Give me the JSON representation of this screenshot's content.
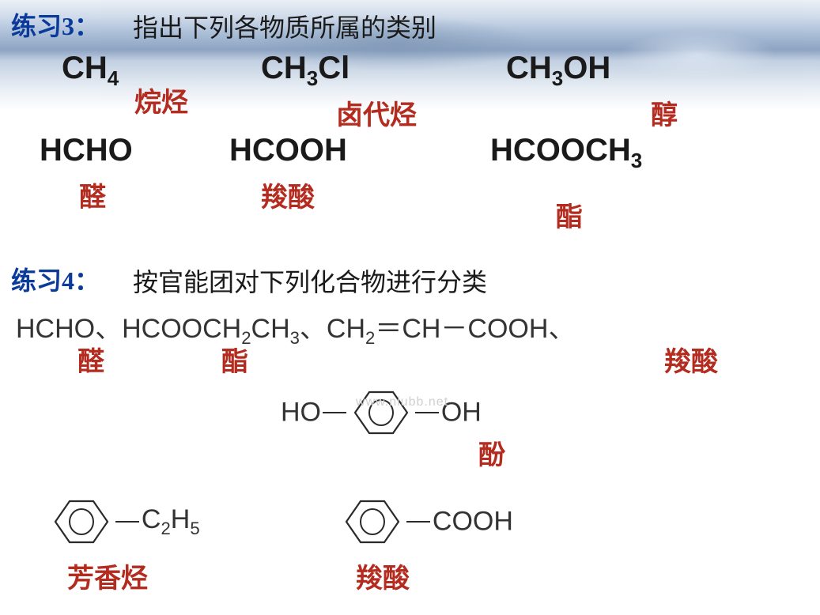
{
  "ex3": {
    "title": "练习3：",
    "prompt": "指出下列各物质所属的类别",
    "row1": [
      {
        "formula_html": "CH<sub>4</sub>",
        "label": "烷烃"
      },
      {
        "formula_html": "CH<sub>3</sub>Cl",
        "label": "卤代烃"
      },
      {
        "formula_html": "CH<sub>3</sub>OH",
        "label": "醇"
      }
    ],
    "row2": [
      {
        "formula_html": "HCHO",
        "label": "醛"
      },
      {
        "formula_html": "HCOOH",
        "label": "羧酸"
      },
      {
        "formula_html": "HCOOCH<sub>3</sub>",
        "label": "酯"
      }
    ]
  },
  "ex4": {
    "title": "练习4：",
    "prompt": "按官能团对下列化合物进行分类",
    "line1": [
      {
        "formula_html": "HCHO",
        "label": "醛"
      },
      {
        "formula_html": "HCOOCH<sub>2</sub>CH<sub>3</sub>",
        "label": "酯"
      },
      {
        "formula_html": "CH<sub>2</sub>＝CH－COOH",
        "label": "羧酸"
      }
    ],
    "phenol": {
      "left": "HO",
      "right": "OH",
      "label": "酚"
    },
    "line3": [
      {
        "sub_html": "C<sub>2</sub>H<sub>5</sub>",
        "label": "芳香烃"
      },
      {
        "sub_html": "COOH",
        "label": "羧酸"
      }
    ]
  },
  "watermark": "www.niubb.net",
  "colors": {
    "title_blue": "#0a3a9a",
    "label_red": "#b42b1f",
    "text": "#1a1a1a",
    "benzene_stroke": "#2a2a2a"
  },
  "fonts": {
    "title_size": 32,
    "formula_size": 40,
    "formula_light_size": 34,
    "label_size": 34
  }
}
